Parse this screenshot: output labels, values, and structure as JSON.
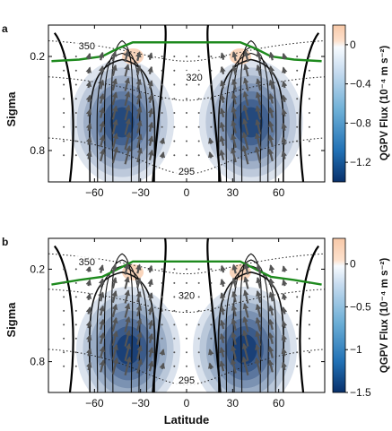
{
  "chart_data": [
    {
      "panel_label": "a",
      "type": "heatmap",
      "xlabel": "",
      "ylabel": "Sigma",
      "xlim": [
        -90,
        90
      ],
      "ylim": [
        1.0,
        0.0
      ],
      "x_ticks": [
        -60,
        -30,
        0,
        30,
        60
      ],
      "y_ticks": [
        0.2,
        0.8
      ],
      "colorbar": {
        "label": "QGPV Flux (10⁻⁴ m s⁻²)",
        "range": [
          -1.4,
          0.2
        ],
        "ticks": [
          0,
          -0.4,
          -0.8,
          -1.2
        ]
      },
      "contour_labels": [
        {
          "text": "350",
          "lat": -65,
          "sigma": 0.13
        },
        {
          "text": "320",
          "lat": 5,
          "sigma": 0.33
        },
        {
          "text": "295",
          "lat": 0,
          "sigma": 0.93
        }
      ],
      "tropopause_sigma": [
        [
          -88,
          0.23
        ],
        [
          -70,
          0.22
        ],
        [
          -55,
          0.2
        ],
        [
          -45,
          0.15
        ],
        [
          -35,
          0.11
        ],
        [
          -20,
          0.11
        ],
        [
          0,
          0.11
        ],
        [
          20,
          0.11
        ],
        [
          35,
          0.11
        ],
        [
          45,
          0.15
        ],
        [
          55,
          0.2
        ],
        [
          70,
          0.22
        ],
        [
          88,
          0.23
        ]
      ],
      "flux_blobs": [
        {
          "lat": -42,
          "sigma": 0.62,
          "value": -1.25
        },
        {
          "lat": 42,
          "sigma": 0.62,
          "value": -1.25
        },
        {
          "lat": -35,
          "sigma": 0.2,
          "value": 0.15
        },
        {
          "lat": 35,
          "sigma": 0.2,
          "value": 0.15
        }
      ]
    },
    {
      "panel_label": "b",
      "type": "heatmap",
      "xlabel": "Latitude",
      "ylabel": "Sigma",
      "xlim": [
        -90,
        90
      ],
      "ylim": [
        1.0,
        0.0
      ],
      "x_ticks": [
        -60,
        -30,
        0,
        30,
        60
      ],
      "y_ticks": [
        0.2,
        0.8
      ],
      "colorbar": {
        "label": "QGPV Flux (10⁻⁴ m s⁻²)",
        "range": [
          -1.5,
          0.3
        ],
        "ticks": [
          0,
          -0.5,
          -1,
          -1.5
        ]
      },
      "contour_labels": [
        {
          "text": "350",
          "lat": -65,
          "sigma": 0.15
        },
        {
          "text": "320",
          "lat": 0,
          "sigma": 0.37
        },
        {
          "text": "295",
          "lat": 0,
          "sigma": 0.92
        }
      ],
      "tropopause_sigma": [
        [
          -88,
          0.3
        ],
        [
          -70,
          0.27
        ],
        [
          -55,
          0.25
        ],
        [
          -45,
          0.2
        ],
        [
          -35,
          0.15
        ],
        [
          -20,
          0.15
        ],
        [
          0,
          0.15
        ],
        [
          20,
          0.15
        ],
        [
          35,
          0.15
        ],
        [
          45,
          0.2
        ],
        [
          55,
          0.25
        ],
        [
          70,
          0.27
        ],
        [
          88,
          0.3
        ]
      ],
      "flux_blobs": [
        {
          "lat": -38,
          "sigma": 0.72,
          "value": -1.4
        },
        {
          "lat": 38,
          "sigma": 0.72,
          "value": -1.4
        },
        {
          "lat": -35,
          "sigma": 0.22,
          "value": 0.2
        },
        {
          "lat": 35,
          "sigma": 0.22,
          "value": 0.2
        }
      ]
    }
  ]
}
